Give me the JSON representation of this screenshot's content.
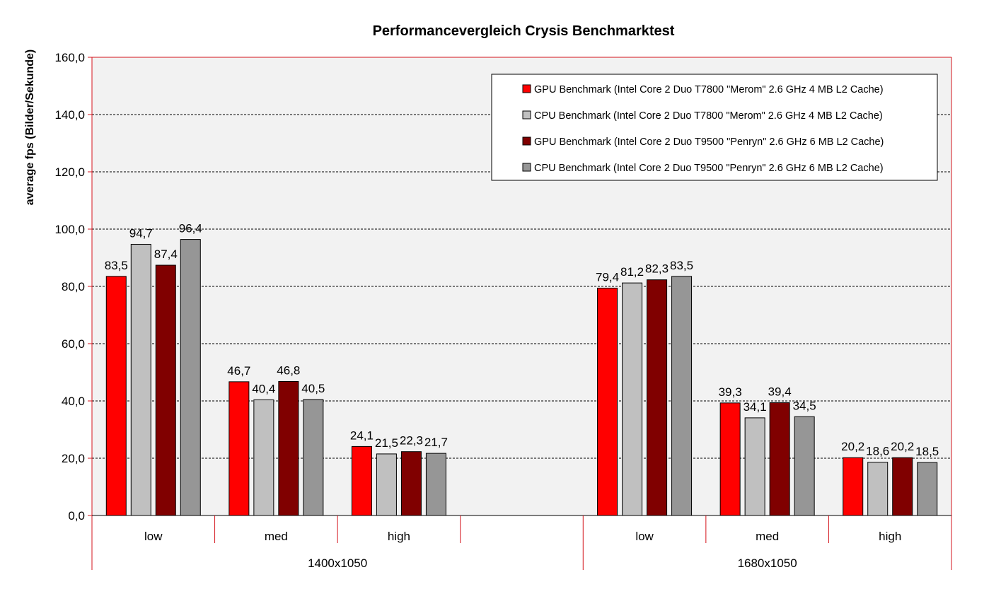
{
  "chart_data": {
    "type": "bar",
    "title": "Performancevergleich Crysis Benchmarktest",
    "ylabel": "average fps (Bilder/Sekunde)",
    "xlabel": "",
    "ylim": [
      0,
      160
    ],
    "yticks": [
      "0,0",
      "20,0",
      "40,0",
      "60,0",
      "80,0",
      "100,0",
      "120,0",
      "140,0",
      "160,0"
    ],
    "grid": true,
    "legend_position": "top-right",
    "groups": [
      "1400x1050",
      "1680x1050"
    ],
    "categories": [
      "low",
      "med",
      "high",
      "",
      "low",
      "med",
      "high"
    ],
    "series": [
      {
        "name": "GPU Benchmark (Intel Core 2 Duo T7800 \"Merom\" 2.6 GHz 4 MB L2 Cache)",
        "color": "#ff0000",
        "values": [
          83.5,
          46.7,
          24.1,
          null,
          79.4,
          39.3,
          20.2
        ],
        "labels": [
          "83,5",
          "46,7",
          "24,1",
          "",
          "79,4",
          "39,3",
          "20,2"
        ]
      },
      {
        "name": "CPU Benchmark (Intel Core 2 Duo T7800 \"Merom\" 2.6 GHz 4 MB L2 Cache)",
        "color": "#c0c0c0",
        "values": [
          94.7,
          40.4,
          21.5,
          null,
          81.2,
          34.1,
          18.6
        ],
        "labels": [
          "94,7",
          "40,4",
          "21,5",
          "",
          "81,2",
          "34,1",
          "18,6"
        ]
      },
      {
        "name": "GPU Benchmark (Intel Core 2 Duo T9500 \"Penryn\" 2.6 GHz 6 MB L2 Cache)",
        "color": "#800000",
        "values": [
          87.4,
          46.8,
          22.3,
          null,
          82.3,
          39.4,
          20.2
        ],
        "labels": [
          "87,4",
          "46,8",
          "22,3",
          "",
          "82,3",
          "39,4",
          "20,2"
        ]
      },
      {
        "name": "CPU Benchmark (Intel Core 2 Duo T9500 \"Penryn\" 2.6 GHz 6 MB L2 Cache)",
        "color": "#969696",
        "values": [
          96.4,
          40.5,
          21.7,
          null,
          83.5,
          34.5,
          18.5
        ],
        "labels": [
          "96,4",
          "40,5",
          "21,7",
          "",
          "83,5",
          "34,5",
          "18,5"
        ]
      }
    ],
    "colors": {
      "plot_background": "#f2f2f2",
      "frame": "#d4141c",
      "gridline": "#000000"
    }
  }
}
